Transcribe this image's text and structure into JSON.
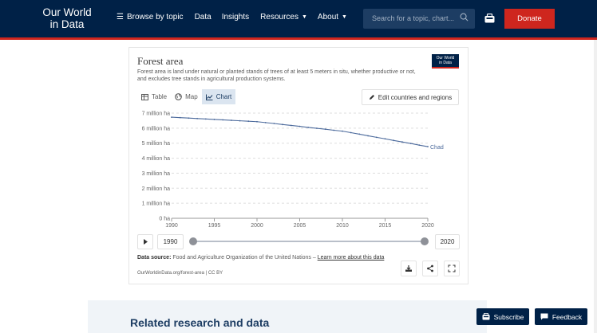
{
  "nav": {
    "logo_line1": "Our World",
    "logo_line2": "in Data",
    "browse": "Browse by topic",
    "data": "Data",
    "insights": "Insights",
    "resources": "Resources",
    "about": "About",
    "search_placeholder": "Search for a topic, chart...",
    "donate": "Donate",
    "colors": {
      "navy": "#002147",
      "red": "#ce261e"
    }
  },
  "card": {
    "title": "Forest area",
    "subtitle": "Forest area is land under natural or planted stands of trees of at least 5 meters in situ, whether productive or not, and excludes tree stands in agricultural production systems.",
    "badge_line1": "Our World",
    "badge_line2": "in Data",
    "tabs": [
      {
        "label": "Table",
        "icon": "table-icon",
        "active": false
      },
      {
        "label": "Map",
        "icon": "globe-icon",
        "active": false
      },
      {
        "label": "Chart",
        "icon": "line-chart-icon",
        "active": true
      }
    ],
    "edit_label": "Edit countries and regions"
  },
  "chart_data": {
    "type": "line",
    "title": "Forest area",
    "xlabel": "",
    "ylabel": "",
    "xlim": [
      1990,
      2020
    ],
    "ylim": [
      0,
      7
    ],
    "yticks": [
      "0 ha",
      "1 million ha",
      "2 million ha",
      "3 million ha",
      "4 million ha",
      "5 million ha",
      "6 million ha",
      "7 million ha"
    ],
    "xticks": [
      "1990",
      "1995",
      "2000",
      "2005",
      "2010",
      "2015",
      "2020"
    ],
    "grid": true,
    "series": [
      {
        "name": "Chad",
        "color": "#4c6a9c",
        "x": [
          1990,
          1991,
          1992,
          1993,
          1994,
          1995,
          1996,
          1997,
          1998,
          1999,
          2000,
          2001,
          2002,
          2003,
          2004,
          2005,
          2006,
          2007,
          2008,
          2009,
          2010,
          2011,
          2012,
          2013,
          2014,
          2015,
          2016,
          2017,
          2018,
          2019,
          2020
        ],
        "values": [
          6.73,
          6.7,
          6.67,
          6.64,
          6.61,
          6.58,
          6.55,
          6.52,
          6.49,
          6.46,
          6.43,
          6.37,
          6.31,
          6.24,
          6.18,
          6.12,
          6.05,
          5.99,
          5.93,
          5.86,
          5.8,
          5.7,
          5.6,
          5.49,
          5.39,
          5.29,
          5.18,
          5.08,
          4.98,
          4.87,
          4.77
        ]
      }
    ]
  },
  "timeline": {
    "start": "1990",
    "end": "2020",
    "progress": 1.0
  },
  "source": {
    "label": "Data source:",
    "text": "Food and Agriculture Organization of the United Nations –",
    "link": "Learn more about this data",
    "url": "OurWorldinData.org/forest-area | CC BY"
  },
  "related_title": "Related research and data",
  "subscribe": "Subscribe",
  "feedback": "Feedback"
}
